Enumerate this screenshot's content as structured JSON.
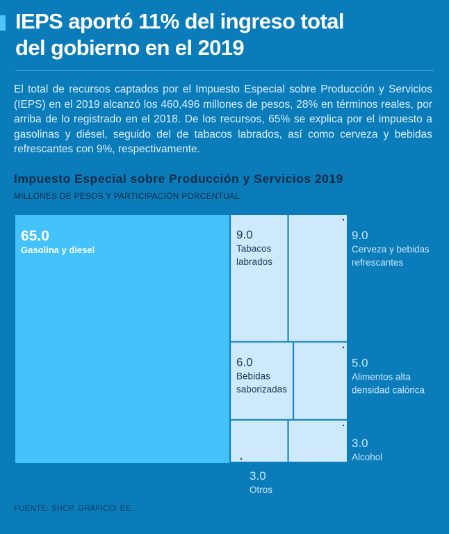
{
  "header": {
    "title_line1": "IEPS aportó 11% del ingreso total",
    "title_line2": "del gobierno en el 2019",
    "intro": "El total de recursos captados por el Impuesto Especial sobre Producción y Servicios (IEPS) en el 2019 alcanzó los 460,496 millones de pesos, 28% en términos reales, por arriba de lo registrado en el 2018. De los recursos, 65% se explica por el impuesto a gasolinas y diésel, seguido del de tabacos labrados, así como cerveza y bebidas refrescantes con 9%, respectivamente."
  },
  "chart_data": {
    "type": "treemap",
    "title": "Impuesto Especial sobre Producción y Servicios 2019",
    "subtitle": "MILLONES DE PESOS Y PARTICIPACIÓN PORCENTUAL",
    "items": [
      {
        "label": "Gasolina y diesel",
        "value": 65.0,
        "value_text": "65.0"
      },
      {
        "label": "Tabacos labrados",
        "value": 9.0,
        "value_text": "9.0"
      },
      {
        "label": "Cerveza y bebidas refrescantes",
        "value": 9.0,
        "value_text": "9.0"
      },
      {
        "label": "Bebidas saborizadas",
        "value": 6.0,
        "value_text": "6.0"
      },
      {
        "label": "Alimentos alta densidad calórica",
        "value": 5.0,
        "value_text": "5.0"
      },
      {
        "label": "Otros",
        "value": 3.0,
        "value_text": "3.0"
      },
      {
        "label": "Alcohol",
        "value": 3.0,
        "value_text": "3.0"
      }
    ],
    "colors": {
      "major": "#43c2fb",
      "minor": "#cde9fb",
      "outside_label": "#cbe6fa",
      "inside_label": "#1d3b57"
    }
  },
  "footer": {
    "source": "FUENTE: SHCP.  GRÁFICO: EE."
  }
}
